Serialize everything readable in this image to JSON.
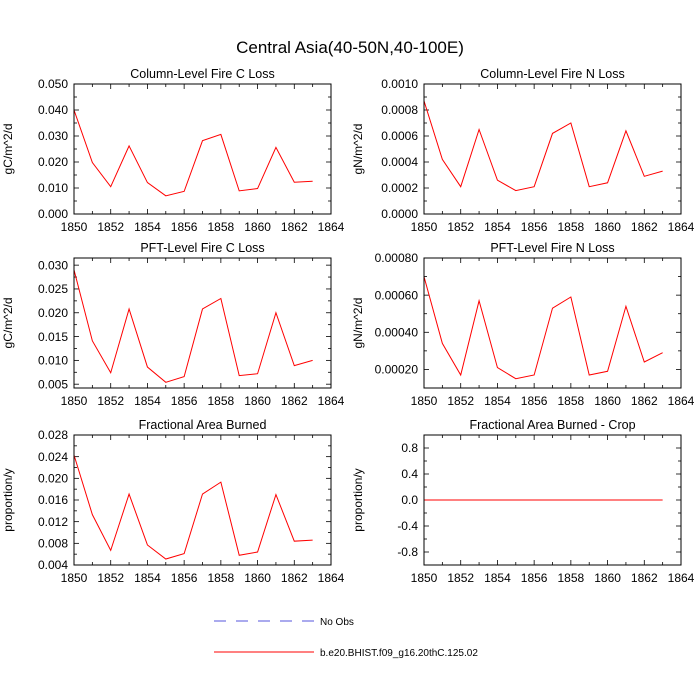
{
  "figure": {
    "title": "Central Asia(40-50N,40-100E)"
  },
  "legend": {
    "entries": [
      {
        "label": "No Obs",
        "style": "dashed",
        "color": "#5555dd"
      },
      {
        "label": "b.e20.BHIST.f09_g16.20thC.125.02",
        "style": "solid",
        "color": "#ff0000"
      }
    ]
  },
  "chart_data": [
    {
      "type": "line",
      "title": "Column-Level Fire C Loss",
      "ylabel": "gC/m^2/d",
      "xlim": [
        1850,
        1864
      ],
      "ylim": [
        0,
        0.05
      ],
      "xticks": [
        "1850",
        "1852",
        "1854",
        "1856",
        "1858",
        "1860",
        "1862",
        "1864"
      ],
      "yticks": [
        "0.000",
        "0.010",
        "0.020",
        "0.030",
        "0.040",
        "0.050"
      ],
      "series": [
        {
          "color": "#ff0000",
          "x": [
            1850,
            1851,
            1852,
            1853,
            1854,
            1855,
            1856,
            1857,
            1858,
            1859,
            1860,
            1861,
            1862,
            1863
          ],
          "values": [
            0.04,
            0.0198,
            0.0105,
            0.0262,
            0.0121,
            0.007,
            0.0087,
            0.0282,
            0.0306,
            0.0089,
            0.0098,
            0.0256,
            0.0122,
            0.0126
          ]
        }
      ]
    },
    {
      "type": "line",
      "title": "Column-Level Fire N Loss",
      "ylabel": "gN/m^2/d",
      "xlim": [
        1850,
        1864
      ],
      "ylim": [
        0,
        0.001
      ],
      "xticks": [
        "1850",
        "1852",
        "1854",
        "1856",
        "1858",
        "1860",
        "1862",
        "1864"
      ],
      "yticks": [
        "0.0000",
        "0.0002",
        "0.0004",
        "0.0006",
        "0.0008",
        "0.0010"
      ],
      "series": [
        {
          "color": "#ff0000",
          "x": [
            1850,
            1851,
            1852,
            1853,
            1854,
            1855,
            1856,
            1857,
            1858,
            1859,
            1860,
            1861,
            1862,
            1863
          ],
          "values": [
            0.00087,
            0.00042,
            0.00021,
            0.00065,
            0.00026,
            0.00018,
            0.00021,
            0.00062,
            0.0007,
            0.00021,
            0.00024,
            0.00064,
            0.00029,
            0.00033
          ]
        }
      ]
    },
    {
      "type": "line",
      "title": "PFT-Level Fire C Loss",
      "ylabel": "gC/m^2/d",
      "xlim": [
        1850,
        1864
      ],
      "ylim": [
        0.0042,
        0.0315
      ],
      "xticks": [
        "1850",
        "1852",
        "1854",
        "1856",
        "1858",
        "1860",
        "1862",
        "1864"
      ],
      "yticks": [
        "0.005",
        "0.010",
        "0.015",
        "0.020",
        "0.025",
        "0.030"
      ],
      "ytick_values": [
        0.005,
        0.01,
        0.015,
        0.02,
        0.025,
        0.03
      ],
      "series": [
        {
          "color": "#ff0000",
          "x": [
            1850,
            1851,
            1852,
            1853,
            1854,
            1855,
            1856,
            1857,
            1858,
            1859,
            1860,
            1861,
            1862,
            1863
          ],
          "values": [
            0.029,
            0.0141,
            0.0074,
            0.0208,
            0.0086,
            0.0054,
            0.0066,
            0.0208,
            0.023,
            0.0068,
            0.0072,
            0.02,
            0.0089,
            0.01
          ]
        }
      ]
    },
    {
      "type": "line",
      "title": "PFT-Level Fire N Loss",
      "ylabel": "gN/m^2/d",
      "xlim": [
        1850,
        1864
      ],
      "ylim": [
        0.0001,
        0.0008
      ],
      "xticks": [
        "1850",
        "1852",
        "1854",
        "1856",
        "1858",
        "1860",
        "1862",
        "1864"
      ],
      "yticks": [
        "0.00020",
        "0.00040",
        "0.00060",
        "0.00080"
      ],
      "ytick_values": [
        0.0002,
        0.0004,
        0.0006,
        0.0008
      ],
      "series": [
        {
          "color": "#ff0000",
          "x": [
            1850,
            1851,
            1852,
            1853,
            1854,
            1855,
            1856,
            1857,
            1858,
            1859,
            1860,
            1861,
            1862,
            1863
          ],
          "values": [
            0.0007,
            0.00034,
            0.00017,
            0.00057,
            0.00021,
            0.00015,
            0.00017,
            0.00053,
            0.00059,
            0.00017,
            0.00019,
            0.00054,
            0.00024,
            0.00029
          ]
        }
      ]
    },
    {
      "type": "line",
      "title": "Fractional Area Burned",
      "ylabel": "proportion/y",
      "xlim": [
        1850,
        1864
      ],
      "ylim": [
        0.004,
        0.028
      ],
      "xticks": [
        "1850",
        "1852",
        "1854",
        "1856",
        "1858",
        "1860",
        "1862",
        "1864"
      ],
      "yticks": [
        "0.004",
        "0.008",
        "0.012",
        "0.016",
        "0.020",
        "0.024",
        "0.028"
      ],
      "ytick_values": [
        0.004,
        0.008,
        0.012,
        0.016,
        0.02,
        0.024,
        0.028
      ],
      "series": [
        {
          "color": "#ff0000",
          "x": [
            1850,
            1851,
            1852,
            1853,
            1854,
            1855,
            1856,
            1857,
            1858,
            1859,
            1860,
            1861,
            1862,
            1863
          ],
          "values": [
            0.0243,
            0.0133,
            0.0067,
            0.0171,
            0.0077,
            0.0051,
            0.0061,
            0.0171,
            0.0193,
            0.0058,
            0.0064,
            0.017,
            0.0084,
            0.0086
          ]
        }
      ]
    },
    {
      "type": "line",
      "title": "Fractional Area Burned - Crop",
      "ylabel": "proportion/y",
      "xlim": [
        1850,
        1864
      ],
      "ylim": [
        -1,
        1
      ],
      "xticks": [
        "1850",
        "1852",
        "1854",
        "1856",
        "1858",
        "1860",
        "1862",
        "1864"
      ],
      "yticks": [
        "-0.8",
        "-0.4",
        "0.0",
        "0.4",
        "0.8"
      ],
      "ytick_values": [
        -0.8,
        -0.4,
        0.0,
        0.4,
        0.8
      ],
      "series": [
        {
          "color": "#ff0000",
          "x": [
            1850,
            1851,
            1852,
            1853,
            1854,
            1855,
            1856,
            1857,
            1858,
            1859,
            1860,
            1861,
            1862,
            1863
          ],
          "values": [
            0,
            0,
            0,
            0,
            0,
            0,
            0,
            0,
            0,
            0,
            0,
            0,
            0,
            0
          ]
        }
      ]
    }
  ]
}
